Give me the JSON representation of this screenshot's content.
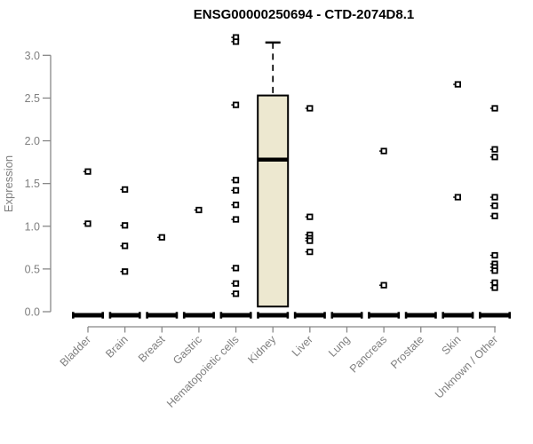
{
  "chart_data": {
    "type": "boxplot",
    "title": "ENSG00000250694 - CTD-2074D8.1",
    "ylabel": "Expression",
    "xlabel": "",
    "ylim": [
      0,
      3.25
    ],
    "y_ticks": [
      0.0,
      0.5,
      1.0,
      1.5,
      2.0,
      2.5,
      3.0
    ],
    "grid": false,
    "legend": null,
    "box_fill_color": "#ede8d0",
    "box_stroke_color": "#000000",
    "axis_color": "#888888",
    "label_color": "#7f7f7f",
    "point_color": "#000000",
    "zero_bar_all_categories": true,
    "categories": [
      {
        "name": "Bladder",
        "points": [
          1.64,
          1.03
        ],
        "box": null
      },
      {
        "name": "Brain",
        "points": [
          1.43,
          1.01,
          0.77,
          0.47
        ],
        "box": null
      },
      {
        "name": "Breast",
        "points": [
          0.87
        ],
        "box": null
      },
      {
        "name": "Gastric",
        "points": [
          1.19
        ],
        "box": null
      },
      {
        "name": "Hematopoietic cells",
        "points": [
          3.21,
          3.16,
          2.42,
          1.54,
          1.42,
          1.25,
          1.08,
          0.51,
          0.33,
          0.21
        ],
        "box": null
      },
      {
        "name": "Kidney",
        "points": [],
        "box": {
          "q1": 0.06,
          "median": 1.78,
          "q3": 2.53,
          "whisker_high": 3.15,
          "whisker_low": null
        }
      },
      {
        "name": "Liver",
        "points": [
          2.38,
          1.11,
          0.9,
          0.86,
          0.83,
          0.7
        ],
        "box": null
      },
      {
        "name": "Lung",
        "points": [],
        "box": null
      },
      {
        "name": "Pancreas",
        "points": [
          1.88,
          0.31
        ],
        "box": null
      },
      {
        "name": "Prostate",
        "points": [],
        "box": null
      },
      {
        "name": "Skin",
        "points": [
          2.66,
          1.34
        ],
        "box": null
      },
      {
        "name": "Unknown / Other",
        "points": [
          2.38,
          1.9,
          1.81,
          1.34,
          1.24,
          1.12,
          0.66,
          0.56,
          0.52,
          0.48,
          0.34,
          0.28
        ],
        "box": null
      }
    ]
  }
}
